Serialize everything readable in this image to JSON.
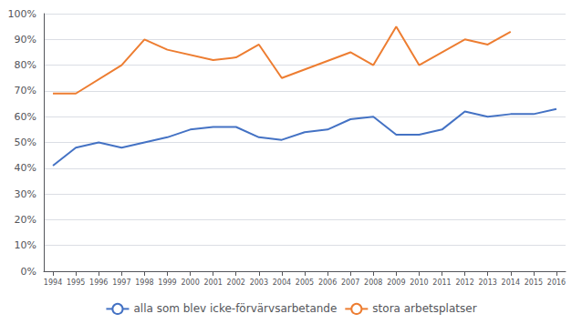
{
  "chart_data": {
    "type": "line",
    "series": [
      {
        "name": "alla som blev icke-förvärvsarbetande",
        "color": "#4472C4",
        "x": [
          1994,
          1995,
          1996,
          1997,
          1998,
          1999,
          2000,
          2001,
          2002,
          2003,
          2004,
          2005,
          2006,
          2007,
          2008,
          2009,
          2010,
          2011,
          2012,
          2013,
          2014,
          2015,
          2016
        ],
        "values": [
          0.41,
          0.48,
          0.5,
          0.48,
          0.5,
          0.52,
          0.55,
          0.56,
          0.56,
          0.52,
          0.51,
          0.54,
          0.55,
          0.59,
          0.6,
          0.53,
          0.53,
          0.55,
          0.62,
          0.6,
          0.61,
          0.61,
          0.63
        ]
      },
      {
        "name": "stora arbetsplatser",
        "color": "#ED7D31",
        "x": [
          1994,
          1995,
          1997,
          1998,
          1999,
          2001,
          2002,
          2003,
          2004,
          2007,
          2008,
          2009,
          2010,
          2012,
          2013,
          2014
        ],
        "values": [
          0.69,
          0.69,
          0.8,
          0.9,
          0.86,
          0.82,
          0.83,
          0.88,
          0.75,
          0.85,
          0.8,
          0.95,
          0.8,
          0.9,
          0.88,
          0.93
        ]
      }
    ],
    "xlim": [
      1993.6,
      2016.4
    ],
    "xticks": [
      1994,
      1995,
      1996,
      1997,
      1998,
      1999,
      2000,
      2001,
      2002,
      2003,
      2004,
      2005,
      2006,
      2007,
      2008,
      2009,
      2010,
      2011,
      2012,
      2013,
      2014,
      2015,
      2016
    ],
    "ylim": [
      0.0,
      1.0
    ],
    "yticks": [
      {
        "value": 0.0,
        "label": "0%"
      },
      {
        "value": 0.1,
        "label": "10%"
      },
      {
        "value": 0.2,
        "label": "20%"
      },
      {
        "value": 0.3,
        "label": "30%"
      },
      {
        "value": 0.4,
        "label": "40%"
      },
      {
        "value": 0.5,
        "label": "50%"
      },
      {
        "value": 0.6,
        "label": "60%"
      },
      {
        "value": 0.7,
        "label": "70%"
      },
      {
        "value": 0.8,
        "label": "80%"
      },
      {
        "value": 0.9,
        "label": "90%"
      },
      {
        "value": 1.0,
        "label": "100%"
      }
    ],
    "grid": true,
    "legend": "bottom"
  }
}
